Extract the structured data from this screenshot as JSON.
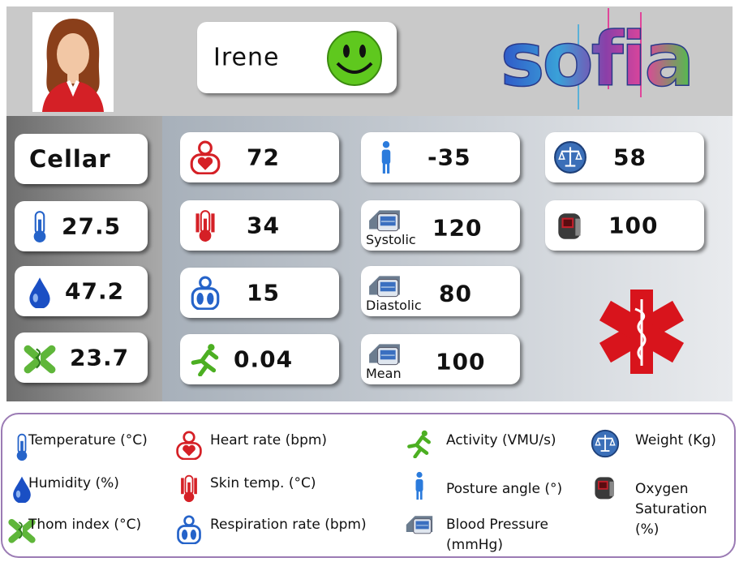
{
  "header": {
    "name": "Irene",
    "logo": "sofia"
  },
  "location": "Cellar",
  "tiles": [
    {
      "value": "27.5"
    },
    {
      "value": "47.2"
    },
    {
      "value": "23.7"
    },
    {
      "value": "72"
    },
    {
      "value": "34"
    },
    {
      "value": "15"
    },
    {
      "value": "0.04"
    },
    {
      "value": "-35"
    },
    {
      "value": "120",
      "label": "Systolic"
    },
    {
      "value": "80",
      "label": "Diastolic"
    },
    {
      "value": "100",
      "label": "Mean"
    },
    {
      "value": "58"
    },
    {
      "value": "100"
    }
  ],
  "legend": [
    {
      "label": "Temperature (°C)"
    },
    {
      "label": "Humidity (%)"
    },
    {
      "label": "Thom index (°C)"
    },
    {
      "label": "Heart rate (bpm)"
    },
    {
      "label": "Skin temp. (°C)"
    },
    {
      "label": "Respiration rate (bpm)"
    },
    {
      "label": "Activity (VMU/s)"
    },
    {
      "label": "Posture angle (°)"
    },
    {
      "label": "Blood Pressure (mmHg)"
    },
    {
      "label": "Weight (Kg)"
    },
    {
      "label": "Oxygen Saturation (%)"
    }
  ]
}
